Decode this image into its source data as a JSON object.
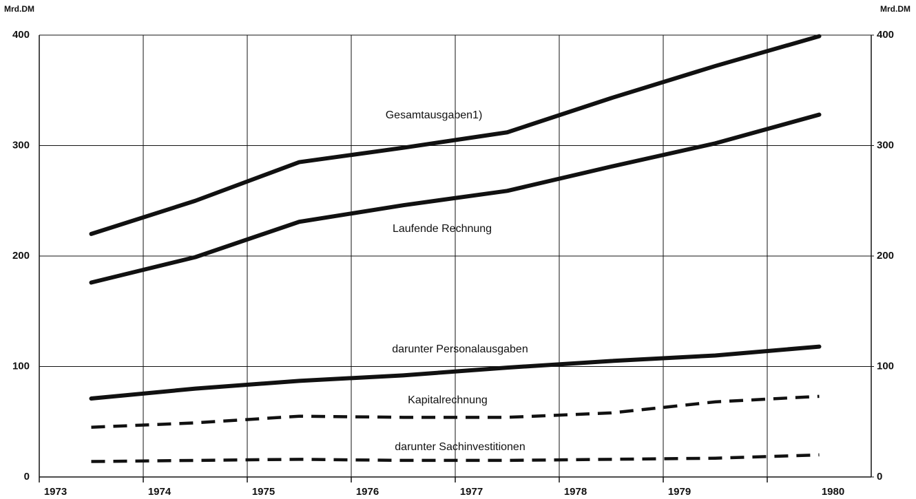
{
  "chart_data": {
    "type": "line",
    "y_label": "Mrd.DM",
    "y2_label": "Mrd.DM",
    "categories": [
      "1973",
      "1974",
      "1975",
      "1976",
      "1977",
      "1978",
      "1979",
      "1980"
    ],
    "series": [
      {
        "name": "Gesamtausgaben1)",
        "color": "#111111",
        "style": "solid",
        "values": [
          220,
          250,
          285,
          298,
          312,
          343,
          372,
          399
        ]
      },
      {
        "name": "Laufende Rechnung",
        "color": "#111111",
        "style": "solid",
        "values": [
          176,
          199,
          231,
          246,
          259,
          281,
          302,
          328
        ]
      },
      {
        "name": "darunter Personalausgaben",
        "color": "#111111",
        "style": "solid",
        "values": [
          71,
          80,
          87,
          92,
          99,
          105,
          110,
          118
        ]
      },
      {
        "name": "Kapitalrechnung",
        "color": "#111111",
        "style": "dashed",
        "values": [
          45,
          49,
          55,
          54,
          54,
          58,
          68,
          73
        ]
      },
      {
        "name": "darunter Sachinvestitionen",
        "color": "#111111",
        "style": "dashed",
        "values": [
          14,
          15,
          16,
          15,
          15,
          16,
          17,
          20
        ]
      }
    ],
    "ylim": [
      0,
      400
    ],
    "yticks": [
      0,
      100,
      200,
      300,
      400
    ],
    "y2lim": [
      0,
      400
    ],
    "y2ticks": [
      0,
      100,
      200,
      300,
      400
    ],
    "grid": true
  }
}
